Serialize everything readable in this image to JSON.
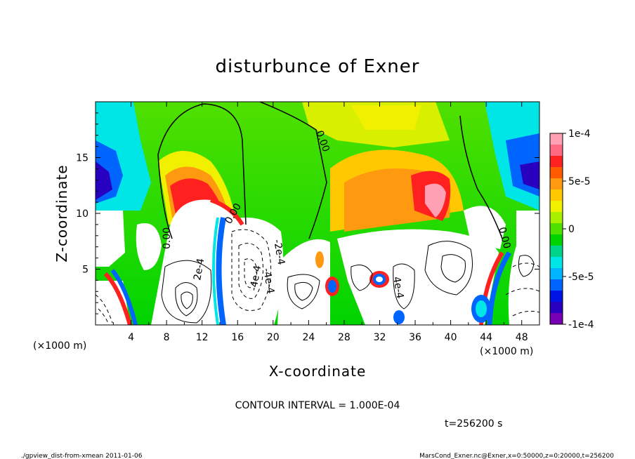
{
  "chart_data": {
    "type": "heatmap",
    "title": "disturbunce of Exner",
    "xlabel": "X-coordinate",
    "ylabel": "Z-coordinate",
    "x_unit": "(×1000 m)",
    "y_unit": "(×1000 m)",
    "xlim": [
      0,
      50
    ],
    "ylim": [
      0,
      20
    ],
    "x_ticks": [
      4,
      8,
      12,
      16,
      20,
      24,
      28,
      32,
      36,
      40,
      44,
      48
    ],
    "y_ticks": [
      5,
      10,
      15
    ],
    "colorbar": {
      "range": [
        -0.0001,
        0.0001
      ],
      "tick_labels": [
        "1e-4",
        "5e-5",
        "0",
        "-5e-5",
        "-1e-4"
      ],
      "tick_values": [
        0.0001,
        5e-05,
        0,
        -5e-05,
        -0.0001
      ],
      "colors": [
        "#ffa0b4",
        "#ff6a82",
        "#ff2020",
        "#ff5a00",
        "#ff9a10",
        "#ffc800",
        "#f0f000",
        "#a8f000",
        "#50e000",
        "#00d400",
        "#00d48a",
        "#00e6e6",
        "#00b4ff",
        "#0064ff",
        "#0014e6",
        "#2800c0",
        "#7800b4"
      ]
    },
    "contour_labels": [
      "0.00",
      "0.00",
      "0.00",
      "0.00",
      "2e-4",
      "-2e-4",
      "-4e-4",
      "-4e-4",
      "4e-4"
    ],
    "contour_interval": "CONTOUR INTERVAL = 1.000E-04",
    "time": "t=256200 s"
  },
  "footer": {
    "left": "./gpview_dist-from-xmean   2011-01-06",
    "right": "MarsCond_Exner.nc@Exner,x=0:50000,z=0:20000,t=256200"
  }
}
